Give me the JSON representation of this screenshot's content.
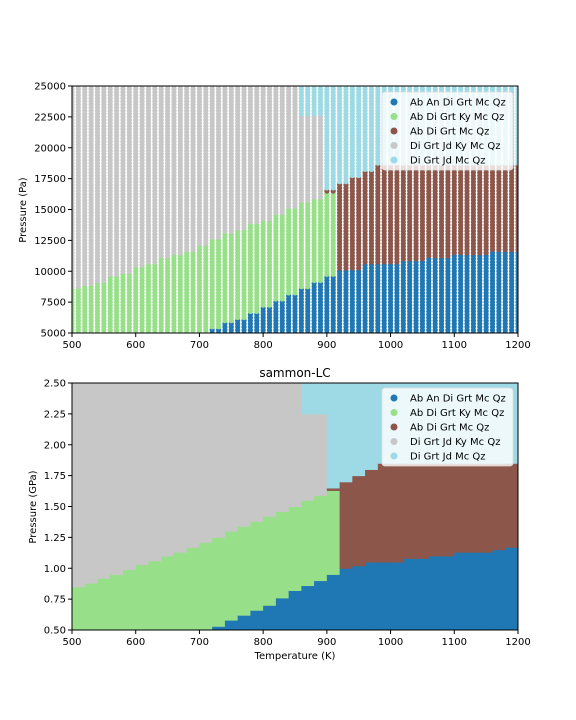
{
  "colors": {
    "Ab An Di Grt Mc Qz": "#1f77b4",
    "Ab Di Grt Ky Mc Qz": "#98df8a",
    "Ab Di Grt Mc Qz": "#8c564b",
    "Di Grt Jd Ky Mc Qz": "#c7c7c7",
    "Di Grt Jd Mc Qz": "#9edae5"
  },
  "phase_boundaries": {
    "comment_free": "",
    "temperature_K": [
      500,
      520,
      540,
      560,
      580,
      600,
      620,
      640,
      660,
      680,
      700,
      720,
      740,
      760,
      780,
      800,
      820,
      840,
      860,
      880,
      900,
      920,
      940,
      960,
      980,
      1000,
      1020,
      1040,
      1060,
      1080,
      1100,
      1120,
      1140,
      1160,
      1180,
      1200
    ],
    "blue_top_GPa": [
      0,
      0,
      0,
      0,
      0,
      0,
      0,
      0,
      0,
      0,
      0,
      0.53,
      0.58,
      0.62,
      0.66,
      0.7,
      0.76,
      0.82,
      0.86,
      0.9,
      0.95,
      1.0,
      1.02,
      1.05,
      1.05,
      1.05,
      1.08,
      1.08,
      1.1,
      1.1,
      1.13,
      1.13,
      1.13,
      1.15,
      1.17,
      1.17
    ],
    "green_top_GPa": [
      0.85,
      0.88,
      0.92,
      0.95,
      0.99,
      1.03,
      1.06,
      1.1,
      1.13,
      1.17,
      1.21,
      1.25,
      1.3,
      1.34,
      1.38,
      1.42,
      1.46,
      1.5,
      1.55,
      1.59,
      1.63,
      1.0,
      1.02,
      1.05,
      1.05,
      1.05,
      1.08,
      1.08,
      1.1,
      1.1,
      1.13,
      1.13,
      1.13,
      1.15,
      1.17,
      1.17
    ],
    "brown_top_GPa": [
      0,
      0,
      0,
      0,
      0,
      0,
      0,
      0,
      0,
      0,
      0,
      0,
      0,
      0,
      0,
      0,
      0,
      0,
      0,
      0,
      1.65,
      1.7,
      1.75,
      1.8,
      1.85,
      1.85,
      1.85,
      1.85,
      1.85,
      1.85,
      1.85,
      1.85,
      1.85,
      1.85,
      1.85,
      1.85
    ],
    "grey_top_GPa": [
      2.5,
      2.5,
      2.5,
      2.5,
      2.5,
      2.5,
      2.5,
      2.5,
      2.5,
      2.5,
      2.5,
      2.5,
      2.5,
      2.5,
      2.5,
      2.5,
      2.5,
      2.5,
      2.25,
      2.25,
      0,
      0,
      0,
      0,
      0,
      0,
      0,
      0,
      0,
      0,
      0,
      0,
      0,
      0,
      0,
      0
    ]
  },
  "chart_data": [
    {
      "type": "scatter",
      "title": "",
      "xlabel": "",
      "ylabel": "Pressure (Pa)",
      "xlim": [
        500,
        1200
      ],
      "ylim": [
        5000,
        25000
      ],
      "xticks": [
        "500",
        "600",
        "700",
        "800",
        "900",
        "1000",
        "1100",
        "1200"
      ],
      "yticks": [
        "5000",
        "7500",
        "10000",
        "12500",
        "15000",
        "17500",
        "20000",
        "22500",
        "25000"
      ],
      "legend_position": "top-right",
      "series": [
        {
          "name": "Ab An Di Grt Mc Qz"
        },
        {
          "name": "Ab Di Grt Ky Mc Qz"
        },
        {
          "name": "Ab Di Grt Mc Qz"
        },
        {
          "name": "Di Grt Jd Ky Mc Qz"
        },
        {
          "name": "Di Grt Jd Mc Qz"
        }
      ]
    },
    {
      "type": "heatmap",
      "title": "sammon-LC",
      "xlabel": "Temperature (K)",
      "ylabel": "Pressure (GPa)",
      "xlim": [
        500,
        1200
      ],
      "ylim": [
        0.5,
        2.5
      ],
      "xticks": [
        "500",
        "600",
        "700",
        "800",
        "900",
        "1000",
        "1100",
        "1200"
      ],
      "yticks": [
        "0.50",
        "0.75",
        "1.00",
        "1.25",
        "1.50",
        "1.75",
        "2.00",
        "2.25",
        "2.50"
      ],
      "legend_position": "top-right",
      "series": [
        {
          "name": "Ab An Di Grt Mc Qz"
        },
        {
          "name": "Ab Di Grt Ky Mc Qz"
        },
        {
          "name": "Ab Di Grt Mc Qz"
        },
        {
          "name": "Di Grt Jd Ky Mc Qz"
        },
        {
          "name": "Di Grt Jd Mc Qz"
        }
      ]
    }
  ]
}
